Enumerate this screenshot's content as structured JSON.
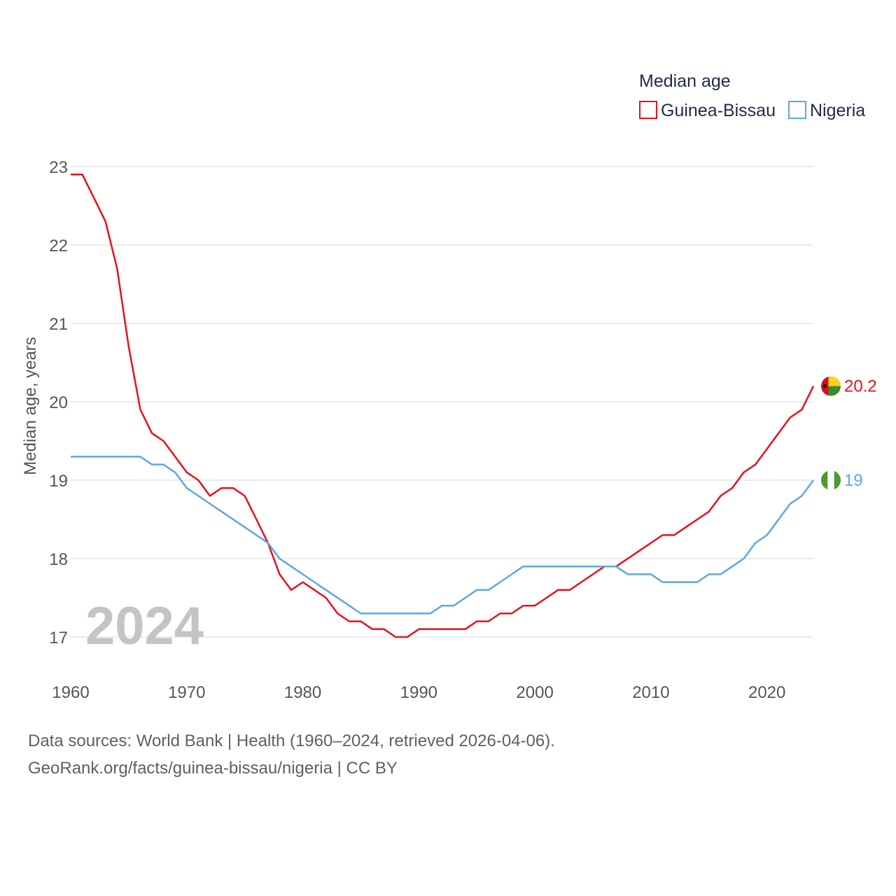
{
  "chart_data": {
    "type": "line",
    "title": "Median age",
    "xlabel": "",
    "ylabel": "Median age, years",
    "xlim": [
      1960,
      2024
    ],
    "ylim": [
      17,
      23
    ],
    "x_ticks": [
      1960,
      1970,
      1980,
      1990,
      2000,
      2010,
      2020
    ],
    "y_ticks": [
      17,
      18,
      19,
      20,
      21,
      22,
      23
    ],
    "grid": true,
    "legend_position": "top-right",
    "current_year_label": "2024",
    "x": [
      1960,
      1961,
      1962,
      1963,
      1964,
      1965,
      1966,
      1967,
      1968,
      1969,
      1970,
      1971,
      1972,
      1973,
      1974,
      1975,
      1976,
      1977,
      1978,
      1979,
      1980,
      1981,
      1982,
      1983,
      1984,
      1985,
      1986,
      1987,
      1988,
      1989,
      1990,
      1991,
      1992,
      1993,
      1994,
      1995,
      1996,
      1997,
      1998,
      1999,
      2000,
      2001,
      2002,
      2003,
      2004,
      2005,
      2006,
      2007,
      2008,
      2009,
      2010,
      2011,
      2012,
      2013,
      2014,
      2015,
      2016,
      2017,
      2018,
      2019,
      2020,
      2021,
      2022,
      2023,
      2024
    ],
    "series": [
      {
        "name": "Guinea-Bissau",
        "color": "#e8111b",
        "end_label": "20.2",
        "flag": "guinea-bissau-flag-icon",
        "values": [
          22.9,
          22.9,
          22.6,
          22.3,
          21.7,
          20.7,
          19.9,
          19.6,
          19.5,
          19.3,
          19.1,
          19.0,
          18.8,
          18.9,
          18.9,
          18.8,
          18.5,
          18.2,
          17.8,
          17.6,
          17.7,
          17.6,
          17.5,
          17.3,
          17.2,
          17.2,
          17.1,
          17.1,
          17.0,
          17.0,
          17.1,
          17.1,
          17.1,
          17.1,
          17.1,
          17.2,
          17.2,
          17.3,
          17.3,
          17.4,
          17.4,
          17.5,
          17.6,
          17.6,
          17.7,
          17.8,
          17.9,
          17.9,
          18.0,
          18.1,
          18.2,
          18.3,
          18.3,
          18.4,
          18.5,
          18.6,
          18.8,
          18.9,
          19.1,
          19.2,
          19.4,
          19.6,
          19.8,
          19.9,
          20.2
        ]
      },
      {
        "name": "Nigeria",
        "color": "#5fa6e3",
        "end_label": "19",
        "flag": "nigeria-flag-icon",
        "values": [
          19.3,
          19.3,
          19.3,
          19.3,
          19.3,
          19.3,
          19.3,
          19.2,
          19.2,
          19.1,
          18.9,
          18.8,
          18.7,
          18.6,
          18.5,
          18.4,
          18.3,
          18.2,
          18.0,
          17.9,
          17.8,
          17.7,
          17.6,
          17.5,
          17.4,
          17.3,
          17.3,
          17.3,
          17.3,
          17.3,
          17.3,
          17.3,
          17.4,
          17.4,
          17.5,
          17.6,
          17.6,
          17.7,
          17.8,
          17.9,
          17.9,
          17.9,
          17.9,
          17.9,
          17.9,
          17.9,
          17.9,
          17.9,
          17.8,
          17.8,
          17.8,
          17.7,
          17.7,
          17.7,
          17.7,
          17.8,
          17.8,
          17.9,
          18.0,
          18.2,
          18.3,
          18.5,
          18.7,
          18.8,
          19.0
        ]
      }
    ]
  },
  "legend": {
    "title": "Median age",
    "items": [
      "Guinea-Bissau",
      "Nigeria"
    ]
  },
  "footer": {
    "source_line": "Data sources: World Bank | Health (1960–2024, retrieved 2026-04-06).",
    "credit_line": "GeoRank.org/facts/guinea-bissau/nigeria | CC BY"
  },
  "colors": {
    "grid": "#e6e6e6",
    "axis_text": "#555555",
    "watermark": "#c4c4c4"
  }
}
